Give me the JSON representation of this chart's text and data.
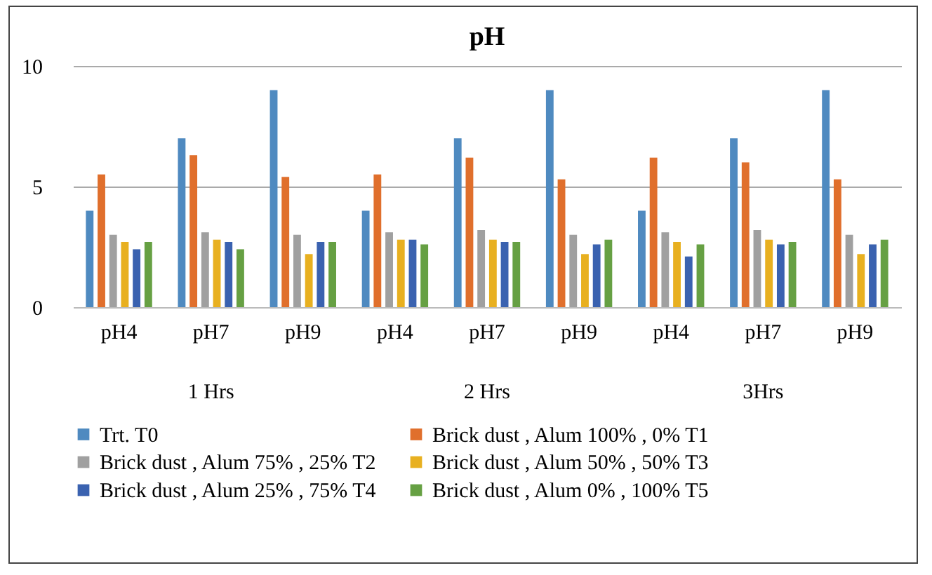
{
  "chart_data": {
    "type": "bar",
    "title": "pH",
    "categories": [
      "pH4",
      "pH7",
      "pH9",
      "pH4",
      "pH7",
      "pH9",
      "pH4",
      "pH7",
      "pH9"
    ],
    "annotations": [
      "1 Hrs",
      "2 Hrs",
      "3Hrs"
    ],
    "series": [
      {
        "name": "Trt. T0",
        "color": "#4f8ac0",
        "values": [
          4.0,
          7.0,
          9.0,
          4.0,
          7.0,
          9.0,
          4.0,
          7.0,
          9.0
        ]
      },
      {
        "name": "Brick dust , Alum 100% , 0% T1",
        "color": "#e06f2c",
        "values": [
          5.5,
          6.3,
          5.4,
          5.5,
          6.2,
          5.3,
          6.2,
          6.0,
          5.3
        ]
      },
      {
        "name": "Brick dust , Alum 75% , 25% T2",
        "color": "#a0a0a0",
        "values": [
          3.0,
          3.1,
          3.0,
          3.1,
          3.2,
          3.0,
          3.1,
          3.2,
          3.0
        ]
      },
      {
        "name": "Brick dust , Alum 50% , 50% T3",
        "color": "#e8b020",
        "values": [
          2.7,
          2.8,
          2.2,
          2.8,
          2.8,
          2.2,
          2.7,
          2.8,
          2.2
        ]
      },
      {
        "name": "Brick dust , Alum 25% , 75% T4",
        "color": "#3a62b0",
        "values": [
          2.4,
          2.7,
          2.7,
          2.8,
          2.7,
          2.6,
          2.1,
          2.6,
          2.6
        ]
      },
      {
        "name": "Brick dust , Alum 0% , 100% T5",
        "color": "#66a043",
        "values": [
          2.7,
          2.4,
          2.7,
          2.6,
          2.7,
          2.8,
          2.6,
          2.7,
          2.8
        ]
      }
    ],
    "ylim": [
      0,
      10
    ],
    "yticks": [
      0,
      5,
      10
    ],
    "grid": "y",
    "legend": "bottom"
  }
}
